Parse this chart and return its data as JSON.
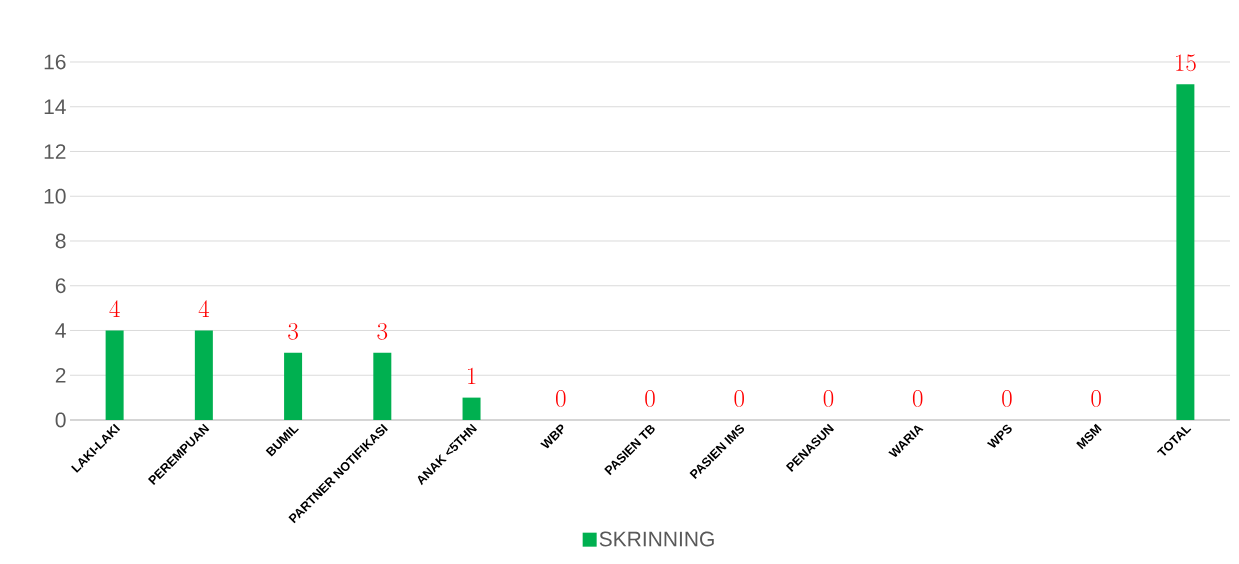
{
  "chart_data": {
    "type": "bar",
    "categories": [
      "LAKI-LAKI",
      "PEREMPUAN",
      "BUMIL",
      "PARTNER NOTIFIKASI",
      "ANAK <5THN",
      "WBP",
      "PASIEN TB",
      "PASIEN IMS",
      "PENASUN",
      "WARIA",
      "WPS",
      "MSM",
      "TOTAL"
    ],
    "series": [
      {
        "name": "SKRINNING",
        "color": "#00b050",
        "values": [
          4,
          4,
          3,
          3,
          1,
          0,
          0,
          0,
          0,
          0,
          0,
          0,
          15
        ]
      }
    ],
    "ylim": [
      0,
      16
    ],
    "yticks": [
      0,
      2,
      4,
      6,
      8,
      10,
      12,
      14,
      16
    ],
    "grid": "y",
    "legend": "bottom",
    "data_labels": true
  }
}
